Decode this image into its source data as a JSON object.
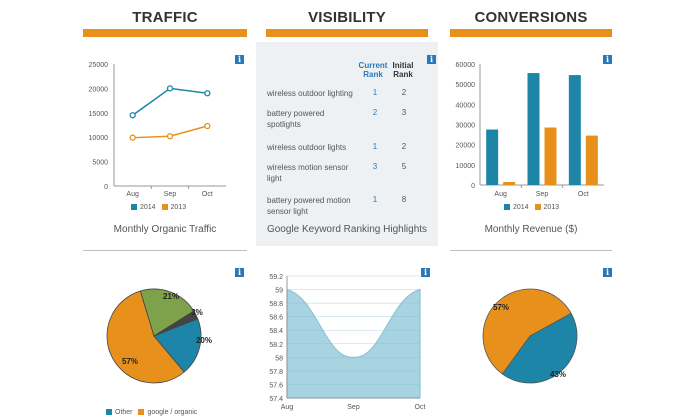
{
  "colors": {
    "orange": "#e8901c",
    "teal": "#1d86a8",
    "olive": "#7ea24a",
    "dark": "#444444",
    "area": "#a8d4e2",
    "areaLine": "#8cc4d6"
  },
  "columns": {
    "traffic": {
      "title": "TRAFFIC"
    },
    "visibility": {
      "title": "VISIBILITY"
    },
    "conversions": {
      "title": "CONVERSIONS"
    }
  },
  "info_glyph": "i",
  "captions": {
    "traffic": "Monthly Organic Traffic",
    "visibility": "Google Keyword Ranking Highlights",
    "conversions": "Monthly Revenue ($)"
  },
  "keywords": {
    "header_current": "Current Rank",
    "header_initial": "Initial Rank",
    "rows": [
      {
        "keyword": "wireless outdoor lighting",
        "current": "1",
        "initial": "2"
      },
      {
        "keyword": "battery powered spotlights",
        "current": "2",
        "initial": "3"
      },
      {
        "keyword": "wireless outdoor lights",
        "current": "1",
        "initial": "2"
      },
      {
        "keyword": "wireless motion sensor light",
        "current": "3",
        "initial": "5"
      },
      {
        "keyword": "battery powered motion sensor light",
        "current": "1",
        "initial": "8"
      }
    ]
  },
  "chart_data": [
    {
      "id": "traffic",
      "type": "line",
      "categories": [
        "Aug",
        "Sep",
        "Oct"
      ],
      "series": [
        {
          "name": "2014",
          "values": [
            14500,
            20000,
            19000
          ]
        },
        {
          "name": "2013",
          "values": [
            9900,
            10200,
            12300
          ]
        }
      ],
      "yticks": [
        "25000",
        "20000",
        "15000",
        "10000",
        "5000",
        "0"
      ],
      "ylim": [
        0,
        25000
      ],
      "title": "Monthly Organic Traffic",
      "legend": "bottom"
    },
    {
      "id": "revenue",
      "type": "bar",
      "categories": [
        "Aug",
        "Sep",
        "Oct"
      ],
      "series": [
        {
          "name": "2014",
          "values": [
            27500,
            55500,
            54500
          ]
        },
        {
          "name": "2013",
          "values": [
            1500,
            28500,
            24500
          ]
        }
      ],
      "yticks": [
        "60000",
        "50000",
        "40000",
        "30000",
        "20000",
        "10000",
        "0"
      ],
      "ylim": [
        0,
        60000
      ],
      "title": "Monthly Revenue ($)",
      "legend": "bottom"
    },
    {
      "id": "traffic-source",
      "type": "pie",
      "slices": [
        {
          "name": "google / organic",
          "value": 57,
          "label": "57%"
        },
        {
          "name": "other-green",
          "value": 21,
          "label": "21%"
        },
        {
          "name": "other-dark",
          "value": 3,
          "label": "3%"
        },
        {
          "name": "Other",
          "value": 20,
          "label": "20%"
        }
      ],
      "legend_entries": [
        "Other",
        "google / organic"
      ]
    },
    {
      "id": "ranking-area",
      "type": "area",
      "categories": [
        "Aug",
        "Sep",
        "Oct"
      ],
      "values": [
        59,
        58,
        59
      ],
      "yticks": [
        "59.2",
        "59",
        "58.8",
        "58.6",
        "58.4",
        "58.2",
        "58",
        "57.8",
        "57.6",
        "57.4"
      ],
      "ylim": [
        57.4,
        59.2
      ]
    },
    {
      "id": "conversion-split",
      "type": "pie",
      "slices": [
        {
          "name": "orange",
          "value": 57,
          "label": "57%"
        },
        {
          "name": "teal",
          "value": 43,
          "label": "43%"
        }
      ]
    }
  ]
}
